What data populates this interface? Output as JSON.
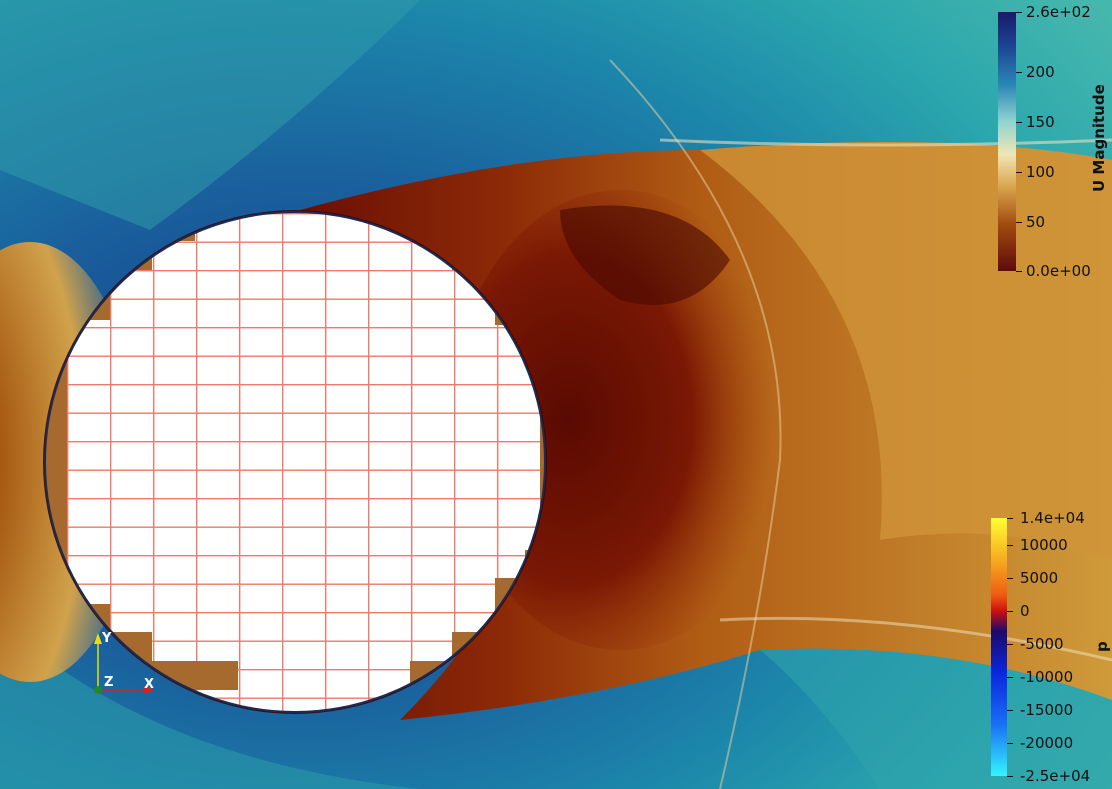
{
  "colorbar_velocity": {
    "title": "U Magnitude",
    "labels": [
      "2.6e+02",
      "200",
      "150",
      "100",
      "50",
      "0.0e+00"
    ]
  },
  "colorbar_pressure": {
    "title": "p",
    "labels": [
      "1.4e+04",
      "10000",
      "5000",
      "0",
      "-5000",
      "-10000",
      "-15000",
      "-20000",
      "-2.5e+04"
    ]
  },
  "axes_triad": {
    "y": "Y",
    "x": "X",
    "z": "Z"
  }
}
